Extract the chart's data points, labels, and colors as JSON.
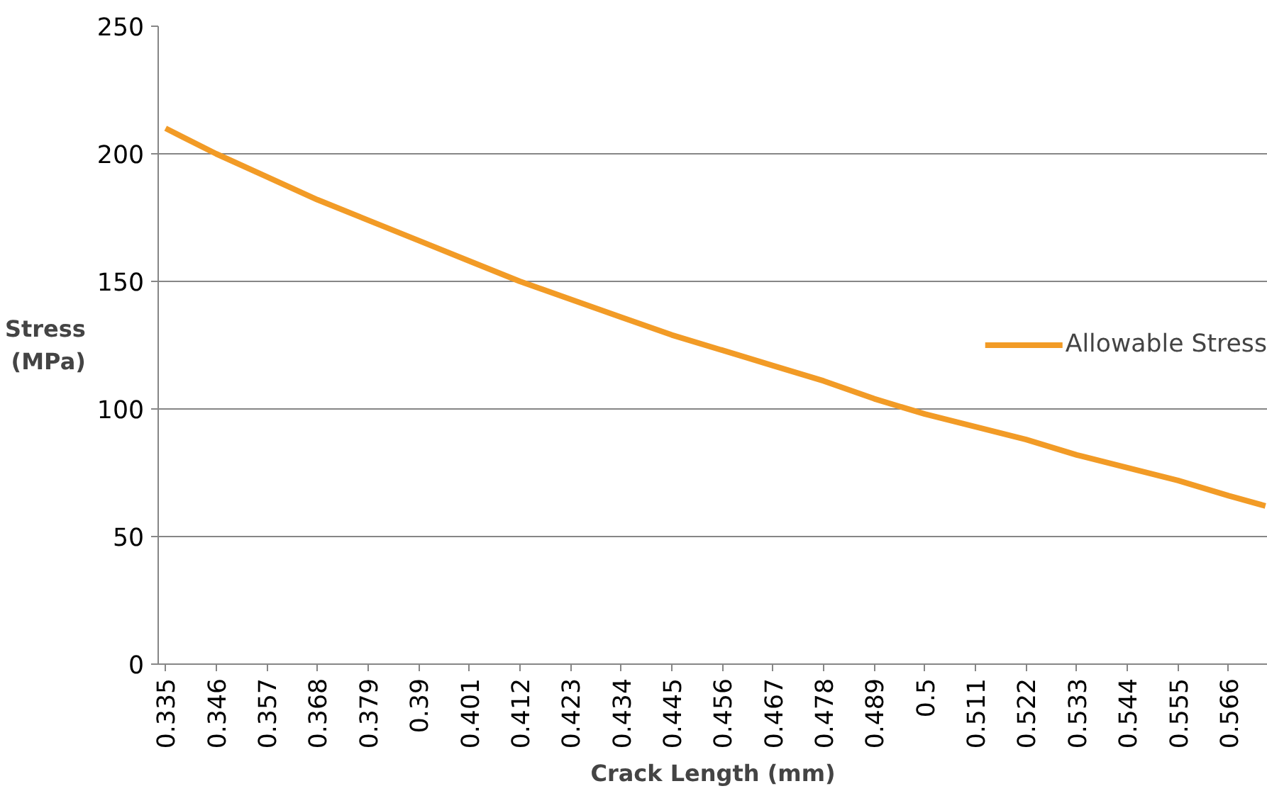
{
  "chart_data": {
    "type": "line",
    "xlabel": "Crack Length (mm)",
    "ylabel": "Stress\n(MPa)",
    "x": [
      0.335,
      0.346,
      0.357,
      0.368,
      0.379,
      0.39,
      0.401,
      0.412,
      0.423,
      0.434,
      0.445,
      0.456,
      0.467,
      0.478,
      0.489,
      0.5,
      0.511,
      0.522,
      0.533,
      0.544,
      0.555,
      0.566,
      0.574
    ],
    "series": [
      {
        "name": "Allowable Stress",
        "color": "#f29b26",
        "values": [
          210,
          200,
          191,
          182,
          174,
          166,
          158,
          150,
          143,
          136,
          129,
          123,
          117,
          111,
          104,
          98,
          93,
          88,
          82,
          77,
          72,
          66,
          62
        ]
      }
    ],
    "xlim": [
      0.3334,
      0.5745
    ],
    "xticks": [
      0.335,
      0.346,
      0.357,
      0.368,
      0.379,
      0.39,
      0.401,
      0.412,
      0.423,
      0.434,
      0.445,
      0.456,
      0.467,
      0.478,
      0.489,
      0.5,
      0.511,
      0.522,
      0.533,
      0.544,
      0.555,
      0.566
    ],
    "ylim": [
      0,
      250
    ],
    "yticks": [
      0,
      50,
      100,
      150,
      200,
      250
    ],
    "grid": "y",
    "legend": "right",
    "marker": "none",
    "line_style": "solid"
  }
}
